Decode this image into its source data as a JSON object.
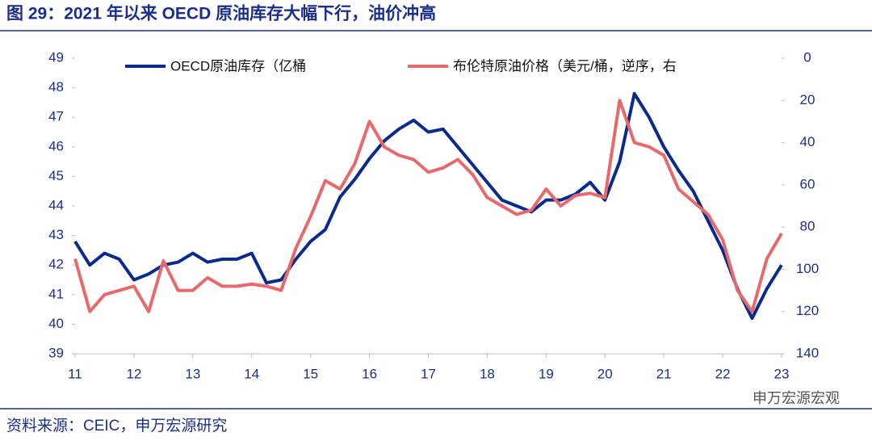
{
  "title": "图 29：2021 年以来 OECD 原油库存大幅下行，油价冲高",
  "source": "资料来源：CEIC，申万宏源研究",
  "watermark": "申万宏源宏观",
  "chart_data": {
    "type": "line",
    "x": [
      11,
      11.25,
      11.5,
      11.75,
      12,
      12.25,
      12.5,
      12.75,
      13,
      13.25,
      13.5,
      13.75,
      14,
      14.25,
      14.5,
      14.75,
      15,
      15.25,
      15.5,
      15.75,
      16,
      16.25,
      16.5,
      16.75,
      17,
      17.25,
      17.5,
      17.75,
      18,
      18.25,
      18.5,
      18.75,
      19,
      19.25,
      19.5,
      19.75,
      20,
      20.25,
      20.5,
      20.75,
      21,
      21.25,
      21.5,
      21.75,
      22,
      22.25,
      22.5,
      22.75,
      23
    ],
    "xlim": [
      11,
      23
    ],
    "xticks": [
      11,
      12,
      13,
      14,
      15,
      16,
      17,
      18,
      19,
      20,
      21,
      22,
      23
    ],
    "ylim": [
      39,
      49
    ],
    "yticks": [
      39,
      40,
      41,
      42,
      43,
      44,
      45,
      46,
      47,
      48,
      49
    ],
    "y2lim": [
      140,
      0
    ],
    "y2ticks": [
      0,
      20,
      40,
      60,
      80,
      100,
      120,
      140
    ],
    "legend": "top",
    "series": [
      {
        "name": "OECD原油库存（亿桶",
        "color": "#0a2a8c",
        "axis": "y",
        "values": [
          42.8,
          42.0,
          42.4,
          42.2,
          41.5,
          41.7,
          42.0,
          42.1,
          42.4,
          42.1,
          42.2,
          42.2,
          42.4,
          41.4,
          41.5,
          42.2,
          42.8,
          43.2,
          44.3,
          44.9,
          45.6,
          46.2,
          46.6,
          46.9,
          46.5,
          46.6,
          46.0,
          45.4,
          44.8,
          44.2,
          44.0,
          43.8,
          44.2,
          44.2,
          44.4,
          44.8,
          44.2,
          45.5,
          47.8,
          47.0,
          46.0,
          45.2,
          44.5,
          43.5,
          42.5,
          41.2,
          40.2,
          41.2,
          42.0
        ]
      },
      {
        "name": "布伦特原油价格（美元/桶，逆序，右",
        "color": "#e8696b",
        "axis": "y2",
        "values": [
          95,
          120,
          112,
          110,
          108,
          120,
          96,
          110,
          110,
          104,
          108,
          108,
          107,
          108,
          110,
          90,
          75,
          58,
          62,
          50,
          30,
          42,
          46,
          48,
          54,
          52,
          48,
          55,
          66,
          70,
          74,
          72,
          62,
          70,
          65,
          64,
          66,
          20,
          40,
          42,
          46,
          62,
          68,
          74,
          86,
          110,
          120,
          95,
          83
        ]
      }
    ]
  }
}
